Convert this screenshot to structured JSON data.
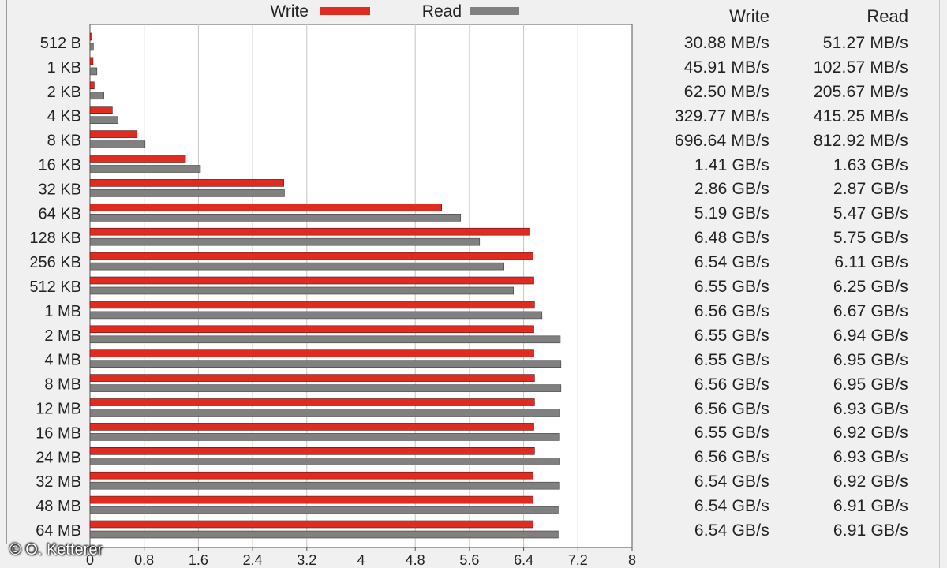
{
  "chart_data": {
    "type": "bar",
    "orientation": "horizontal",
    "categories": [
      "512 B",
      "1 KB",
      "2 KB",
      "4 KB",
      "8 KB",
      "16 KB",
      "32 KB",
      "64 KB",
      "128 KB",
      "256 KB",
      "512 KB",
      "1 MB",
      "2 MB",
      "4 MB",
      "8 MB",
      "12 MB",
      "16 MB",
      "24 MB",
      "32 MB",
      "48 MB",
      "64 MB"
    ],
    "series": [
      {
        "name": "Write",
        "color": "#e02b20",
        "values": [
          0.03088,
          0.04591,
          0.0625,
          0.32977,
          0.69664,
          1.41,
          2.86,
          5.19,
          6.48,
          6.54,
          6.55,
          6.56,
          6.55,
          6.55,
          6.56,
          6.56,
          6.55,
          6.56,
          6.54,
          6.54,
          6.54
        ]
      },
      {
        "name": "Read",
        "color": "#808080",
        "values": [
          0.05127,
          0.10257,
          0.20567,
          0.41525,
          0.81292,
          1.63,
          2.87,
          5.47,
          5.75,
          6.11,
          6.25,
          6.67,
          6.94,
          6.95,
          6.95,
          6.93,
          6.92,
          6.93,
          6.92,
          6.91,
          6.91
        ]
      }
    ],
    "xlim": [
      0,
      8
    ],
    "xticks": [
      "0",
      "0.8",
      "1.6",
      "2.4",
      "3.2",
      "4",
      "4.8",
      "5.6",
      "6.4",
      "7.2",
      "8"
    ],
    "grid": true,
    "legend": "top"
  },
  "table": {
    "header_write": "Write",
    "header_read": "Read",
    "rows": [
      {
        "write": "30.88 MB/s",
        "read": "51.27 MB/s"
      },
      {
        "write": "45.91 MB/s",
        "read": "102.57 MB/s"
      },
      {
        "write": "62.50 MB/s",
        "read": "205.67 MB/s"
      },
      {
        "write": "329.77 MB/s",
        "read": "415.25 MB/s"
      },
      {
        "write": "696.64 MB/s",
        "read": "812.92 MB/s"
      },
      {
        "write": "1.41 GB/s",
        "read": "1.63 GB/s"
      },
      {
        "write": "2.86 GB/s",
        "read": "2.87 GB/s"
      },
      {
        "write": "5.19 GB/s",
        "read": "5.47 GB/s"
      },
      {
        "write": "6.48 GB/s",
        "read": "5.75 GB/s"
      },
      {
        "write": "6.54 GB/s",
        "read": "6.11 GB/s"
      },
      {
        "write": "6.55 GB/s",
        "read": "6.25 GB/s"
      },
      {
        "write": "6.56 GB/s",
        "read": "6.67 GB/s"
      },
      {
        "write": "6.55 GB/s",
        "read": "6.94 GB/s"
      },
      {
        "write": "6.55 GB/s",
        "read": "6.95 GB/s"
      },
      {
        "write": "6.56 GB/s",
        "read": "6.95 GB/s"
      },
      {
        "write": "6.56 GB/s",
        "read": "6.93 GB/s"
      },
      {
        "write": "6.55 GB/s",
        "read": "6.92 GB/s"
      },
      {
        "write": "6.56 GB/s",
        "read": "6.93 GB/s"
      },
      {
        "write": "6.54 GB/s",
        "read": "6.92 GB/s"
      },
      {
        "write": "6.54 GB/s",
        "read": "6.91 GB/s"
      },
      {
        "write": "6.54 GB/s",
        "read": "6.91 GB/s"
      }
    ]
  },
  "copyright": "© O. Ketterer"
}
